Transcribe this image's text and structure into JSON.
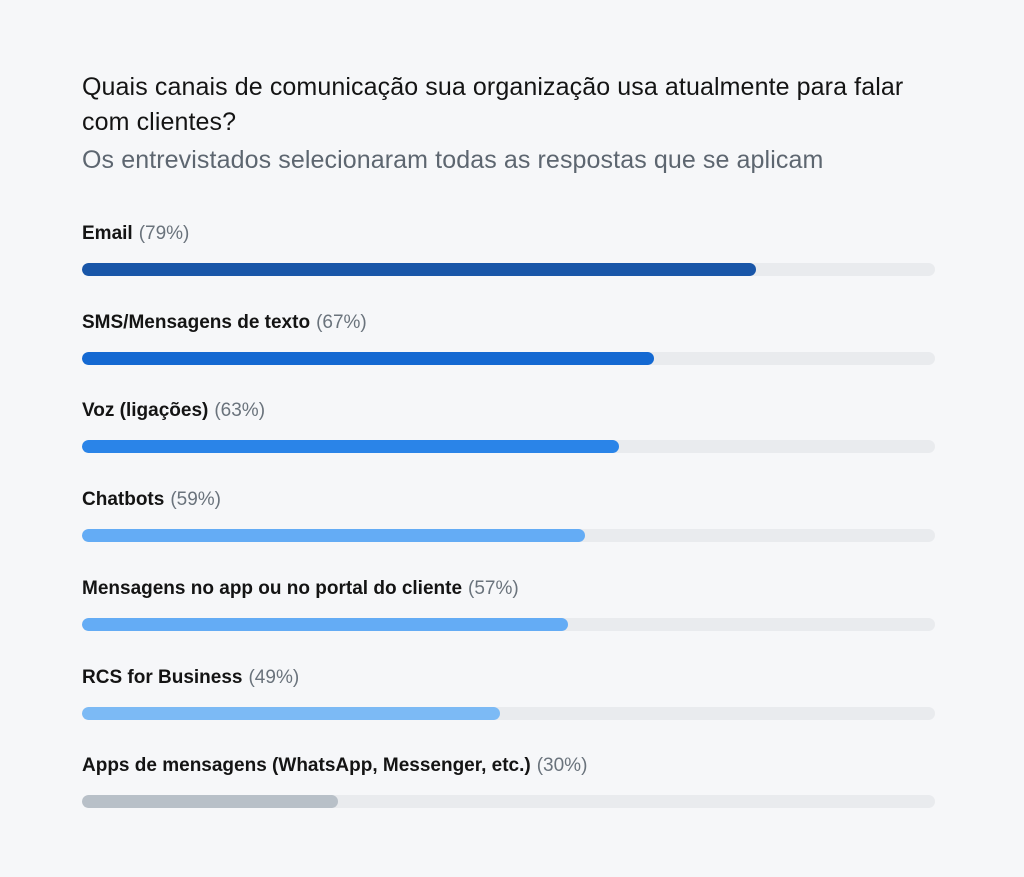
{
  "chart_data": {
    "type": "bar",
    "orientation": "horizontal",
    "title": "Quais canais de comunicação sua organização usa atualmente para falar com clientes?",
    "subtitle": "Os entrevistados selecionaram todas as respostas que se aplicam",
    "xlim": [
      0,
      100
    ],
    "grid": false,
    "legend": "none",
    "categories": [
      "Email",
      "SMS/Mensagens de texto",
      "Voz (ligações)",
      "Chatbots",
      "Mensagens no app ou no portal do cliente",
      "RCS for Business",
      "Apps de mensagens (WhatsApp, Messenger, etc.)"
    ],
    "values": [
      79,
      67,
      63,
      59,
      57,
      49,
      30
    ],
    "value_labels": [
      "(79%)",
      "(67%)",
      "(63%)",
      "(59%)",
      "(57%)",
      "(49%)",
      "(30%)"
    ],
    "colors": [
      "#1956a8",
      "#1469d2",
      "#2a84e8",
      "#64acf5",
      "#64acf5",
      "#7cbaf5",
      "#b8c0c8"
    ],
    "track_color": "#e9ebee"
  }
}
